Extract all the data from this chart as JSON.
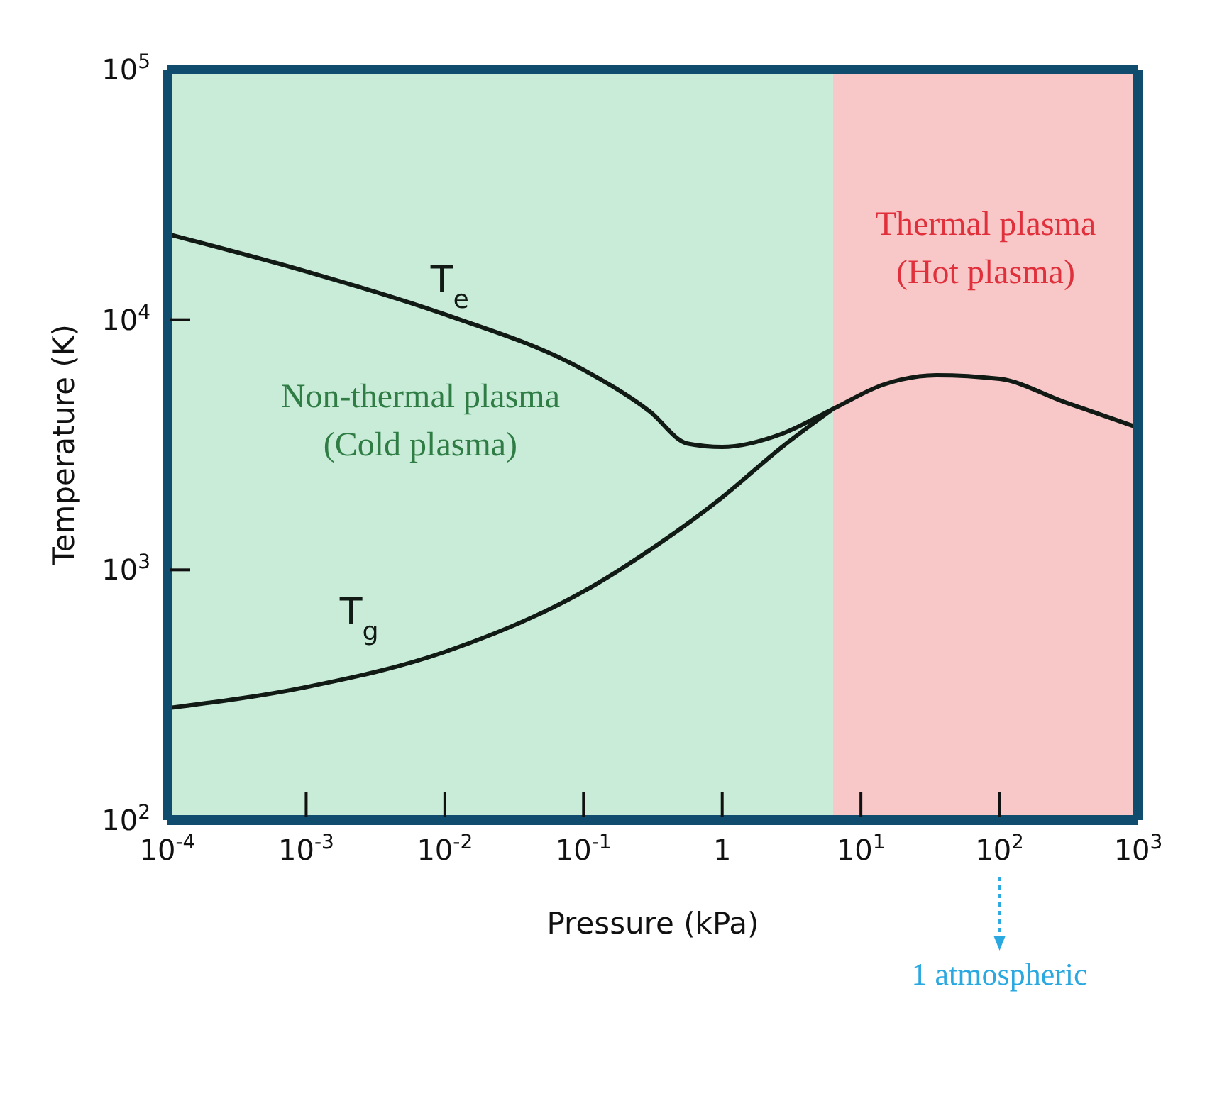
{
  "chart_data": {
    "type": "line",
    "xlabel": "Pressure (kPa)",
    "ylabel": "Temperature (K)",
    "log": "xy",
    "grid": false,
    "legend": false,
    "marker": "none",
    "line_style": "solid",
    "xlim": [
      0.0001,
      1000
    ],
    "ylim": [
      100,
      100000
    ],
    "xticks": [
      {
        "value": 0.0001,
        "label": "10$^{-4}$"
      },
      {
        "value": 0.001,
        "label": "10$^{-3}$"
      },
      {
        "value": 0.01,
        "label": "10$^{-2}$"
      },
      {
        "value": 0.1,
        "label": "10$^{-1}$"
      },
      1,
      {
        "value": 10,
        "label": "10$^{1}$"
      },
      {
        "value": 100,
        "label": "10$^{2}$"
      },
      {
        "value": 1000,
        "label": "10$^{3}$"
      }
    ],
    "yticks": [
      {
        "value": 100,
        "label": "10$^{2}$"
      },
      {
        "value": 1000,
        "label": "10$^{3}$"
      },
      {
        "value": 10000,
        "label": "10$^{4}$"
      },
      {
        "value": 100000,
        "label": "10$^{5}$"
      }
    ],
    "series": [
      {
        "color": "#111a14",
        "x": [
          0.0001,
          0.001,
          0.01,
          0.1,
          0.3,
          0.56,
          1,
          2.7,
          6.3,
          14.5,
          35,
          100,
          290,
          1000
        ],
        "values": [
          22000,
          15600,
          10500,
          6300,
          4300,
          3200,
          3100,
          3500,
          4400,
          5500,
          6000,
          5800,
          4700,
          3700
        ]
      },
      {
        "color": "#111a14",
        "x": [
          0.0001,
          0.001,
          0.01,
          0.1,
          0.3,
          1,
          2.7,
          6.3
        ],
        "values": [
          280,
          340,
          470,
          820,
          1200,
          1950,
          3100,
          4400
        ]
      }
    ],
    "bands": [
      {
        "axis": "x",
        "from": 0.0001,
        "to": 6.3,
        "label": "Non-thermal plasma\n(Cold plasma)",
        "color": "#c8ecd8"
      },
      {
        "axis": "x",
        "from": 6.3,
        "to": 1000,
        "label": "Thermal plasma\n(Hot plasma)",
        "color": "#f8c8c8"
      }
    ],
    "annotations": [
      {
        "text": "T$_{e}$",
        "x": 0.009,
        "y": 11000
      },
      {
        "text": "T$_{g}$",
        "x": 0.002,
        "y": 390
      },
      {
        "text": "1 atmospheric",
        "x": 100
      }
    ]
  }
}
